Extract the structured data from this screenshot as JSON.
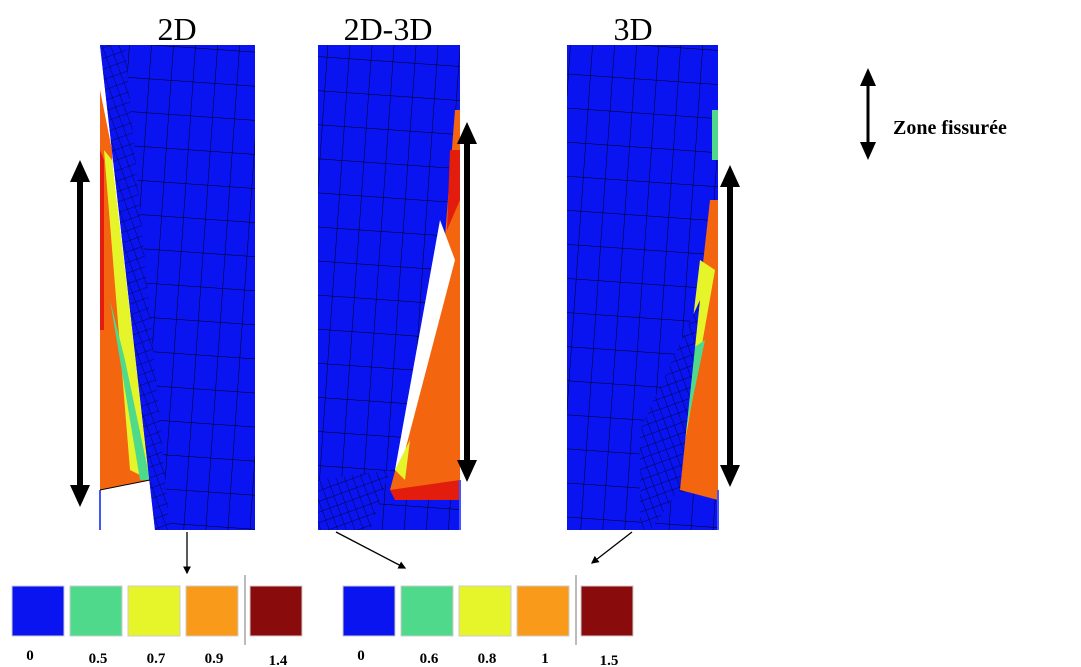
{
  "panels": [
    {
      "title": "2D"
    },
    {
      "title": "2D-3D"
    },
    {
      "title": "3D"
    }
  ],
  "annotation": "Zone fissurée",
  "legends": [
    {
      "items": [
        {
          "label": "0",
          "color": "#0a14f0"
        },
        {
          "label": "0.5",
          "color": "#4fd98a"
        },
        {
          "label": "0.7",
          "color": "#e6f52a"
        },
        {
          "label": "0.9",
          "color": "#f99a1a"
        },
        {
          "label": "1.4",
          "color": "#8a0b0b"
        }
      ]
    },
    {
      "items": [
        {
          "label": "0",
          "color": "#0a14f0"
        },
        {
          "label": "0.6",
          "color": "#4fd98a"
        },
        {
          "label": "0.8",
          "color": "#e6f52a"
        },
        {
          "label": "1",
          "color": "#f99a1a"
        },
        {
          "label": "1.5",
          "color": "#8a0b0b"
        }
      ]
    }
  ]
}
